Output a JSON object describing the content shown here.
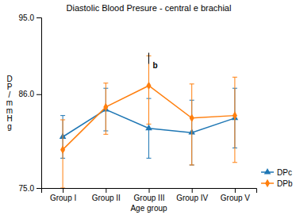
{
  "chart_data": {
    "type": "line",
    "title": "Diastolic Blood Presure - central e brachial",
    "xlabel": "Age group",
    "ylabel": "D\nP\n/\nm\nm\nH\ng",
    "categories": [
      "Group I",
      "Group II",
      "Group III",
      "Group IV",
      "Group V"
    ],
    "series": [
      {
        "name": "DPc",
        "marker": "triangle",
        "values": [
          81.0,
          84.2,
          82.0,
          81.5,
          83.2
        ],
        "error_low": [
          2.5,
          2.5,
          3.5,
          3.8,
          3.5
        ],
        "error_high": [
          2.5,
          2.5,
          3.5,
          3.8,
          3.5
        ]
      },
      {
        "name": "DPb",
        "marker": "diamond",
        "values": [
          79.5,
          84.5,
          87.0,
          83.2,
          83.5
        ],
        "error_low": [
          4.5,
          3.2,
          4.5,
          5.5,
          5.5
        ],
        "error_high": [
          3.5,
          2.8,
          3.5,
          4.0,
          4.5
        ]
      }
    ],
    "ylim": [
      75.0,
      95.0
    ],
    "yticks": [
      {
        "value": 75.0,
        "label": "75.0"
      },
      {
        "value": 86.0,
        "label": "86.0"
      },
      {
        "value": 95.0,
        "label": "95.0"
      }
    ],
    "grid": false,
    "legend": "lower right",
    "annotations": [
      {
        "text": "b",
        "x": "Group III",
        "y": 89.0
      }
    ]
  }
}
